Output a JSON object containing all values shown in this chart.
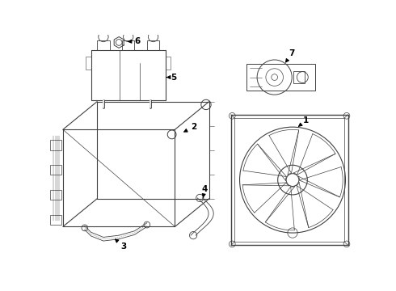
{
  "bg_color": "#ffffff",
  "line_color": "#404040",
  "label_color": "#000000",
  "lw": 0.6,
  "figsize": [
    4.9,
    3.6
  ],
  "dpi": 100
}
